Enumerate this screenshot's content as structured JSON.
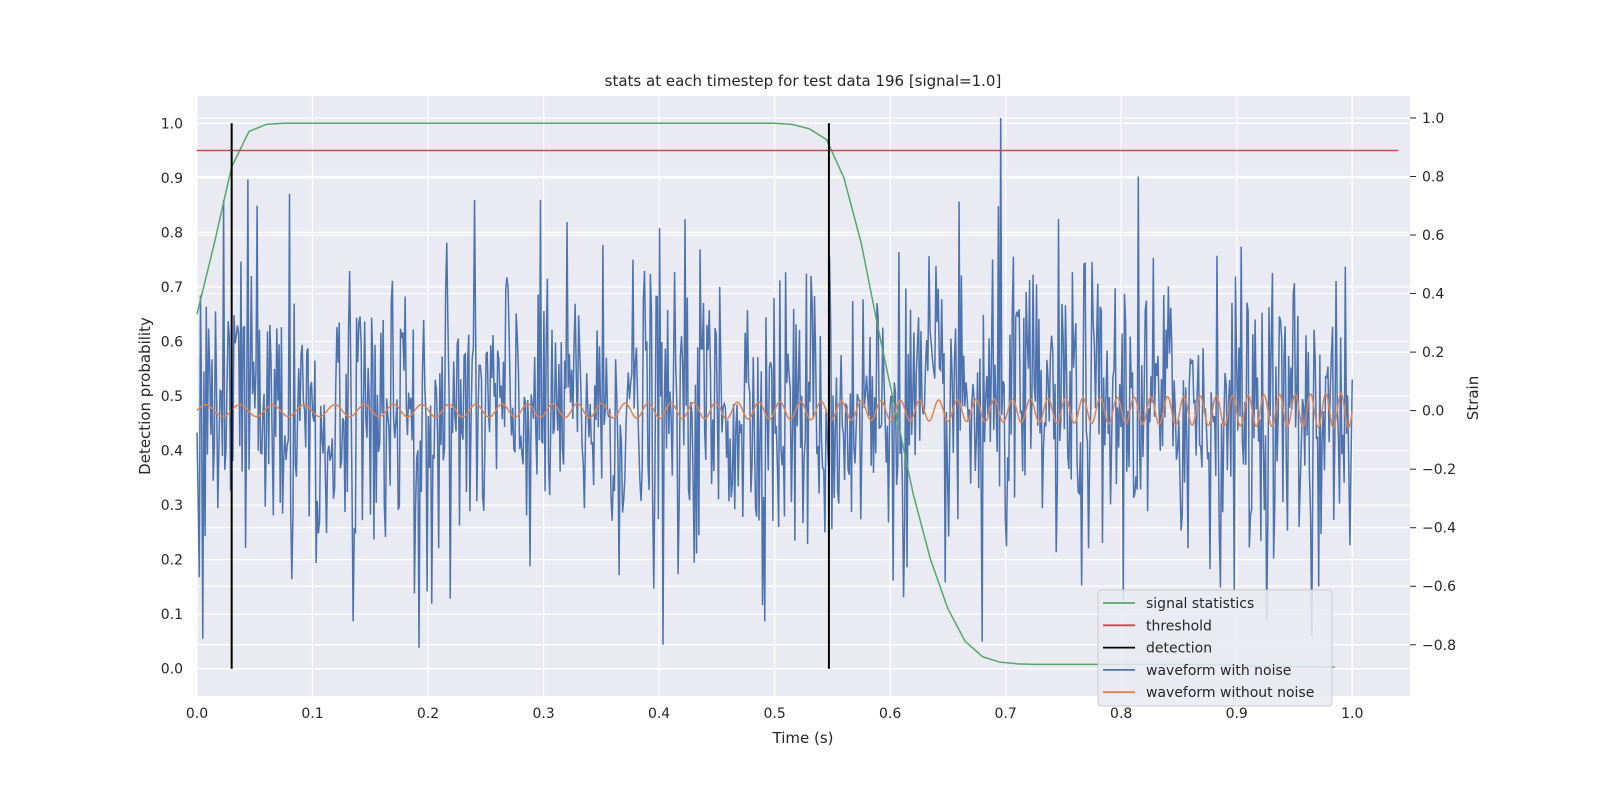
{
  "chart_data": {
    "type": "line",
    "title": "stats at each timestep for test data 196 [signal=1.0]",
    "xlabel": "Time (s)",
    "ylabel_left": "Detection probability",
    "ylabel_right": "Strain",
    "xlim": [
      0.0,
      1.05
    ],
    "ylim_left": [
      -0.05,
      1.05
    ],
    "ylim_right": [
      -0.975,
      1.075
    ],
    "xticks": [
      "0.0",
      "0.1",
      "0.2",
      "0.3",
      "0.4",
      "0.5",
      "0.6",
      "0.7",
      "0.8",
      "0.9",
      "1.0"
    ],
    "yticks_left": [
      "0.0",
      "0.1",
      "0.2",
      "0.3",
      "0.4",
      "0.5",
      "0.6",
      "0.7",
      "0.8",
      "0.9",
      "1.0"
    ],
    "yticks_right": [
      "−0.8",
      "−0.6",
      "−0.4",
      "−0.2",
      "0.0",
      "0.2",
      "0.4",
      "0.6",
      "0.8",
      "1.0"
    ],
    "grid": true,
    "legend_position": "lower-right",
    "series": [
      {
        "name": "signal statistics",
        "color": "#55a868",
        "axis": "left",
        "x": [
          0.0,
          0.015,
          0.03,
          0.045,
          0.06,
          0.075,
          0.1,
          0.2,
          0.3,
          0.4,
          0.5,
          0.515,
          0.53,
          0.545,
          0.56,
          0.575,
          0.59,
          0.605,
          0.62,
          0.635,
          0.65,
          0.665,
          0.68,
          0.695,
          0.71,
          0.725,
          0.74,
          0.755,
          0.77,
          0.8,
          0.85,
          0.9,
          0.95,
          0.985
        ],
        "y": [
          0.65,
          0.78,
          0.92,
          0.985,
          0.998,
          1.0,
          1.0,
          1.0,
          1.0,
          1.0,
          1.0,
          0.998,
          0.99,
          0.97,
          0.9,
          0.78,
          0.62,
          0.47,
          0.32,
          0.2,
          0.11,
          0.05,
          0.022,
          0.012,
          0.009,
          0.008,
          0.008,
          0.008,
          0.008,
          0.008,
          0.008,
          0.006,
          0.004,
          0.003
        ]
      },
      {
        "name": "threshold",
        "color": "#c44e52",
        "axis": "left",
        "x": [
          0.0,
          1.04
        ],
        "y": [
          0.95,
          0.95
        ]
      },
      {
        "name": "detection",
        "color": "#000000",
        "axis": "left",
        "vlines": [
          0.03,
          0.547
        ],
        "y": [
          0.0,
          1.0
        ]
      },
      {
        "name": "waveform with noise",
        "color": "#4c72b0",
        "axis": "right",
        "x_start": 0.0,
        "x_end": 1.0,
        "points": 1000,
        "amplitude": 0.25,
        "peaks": [
          {
            "x": 0.696,
            "y": 1.0
          },
          {
            "x": 0.044,
            "y": 0.79
          },
          {
            "x": 0.08,
            "y": 0.74
          },
          {
            "x": 0.815,
            "y": 0.8
          },
          {
            "x": 0.005,
            "y": -0.78
          },
          {
            "x": 0.192,
            "y": -0.81
          },
          {
            "x": 0.403,
            "y": -0.8
          },
          {
            "x": 0.68,
            "y": -0.79
          },
          {
            "x": 0.965,
            "y": -0.77
          }
        ]
      },
      {
        "name": "waveform without noise",
        "color": "#dd8452",
        "axis": "right",
        "x_start": 0.0,
        "x_end": 1.0,
        "amplitude_start": 0.02,
        "amplitude_end": 0.06,
        "cycles": 55
      }
    ]
  }
}
